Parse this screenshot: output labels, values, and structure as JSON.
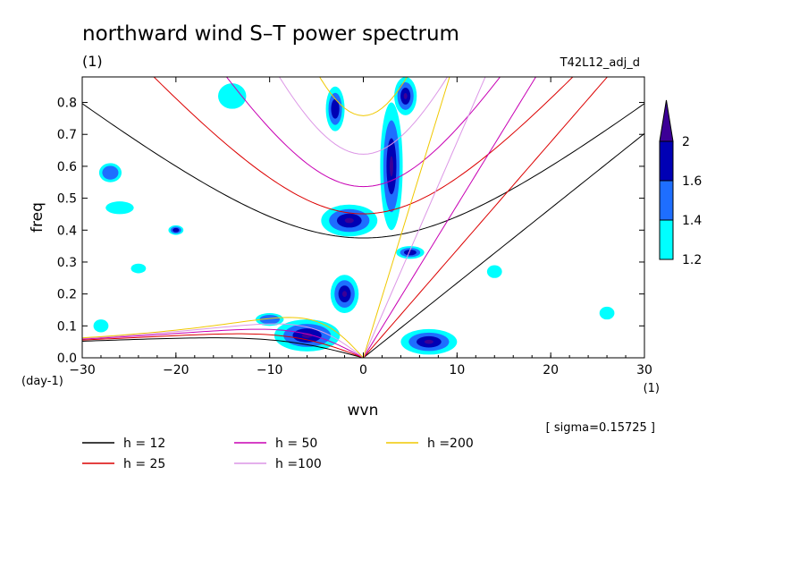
{
  "chart_data": {
    "type": "heatmap",
    "title": "northward wind S–T power spectrum",
    "subtitle_left": "(1)",
    "subtitle_right": "T42L12_adj_d",
    "xlabel": "wvn",
    "ylabel": "freq",
    "x_unit": "(1)",
    "y_unit": "(day-1)",
    "note": "[ sigma=0.15725 ]",
    "xlim": [
      -30,
      30
    ],
    "ylim": [
      0,
      0.88
    ],
    "x_ticks": [
      -30,
      -20,
      -10,
      0,
      10,
      20,
      30
    ],
    "x_tick_labels": [
      "−30",
      "−20",
      "−10",
      "0",
      "10",
      "20",
      "30"
    ],
    "y_ticks": [
      0,
      0.1,
      0.2,
      0.3,
      0.4,
      0.5,
      0.6,
      0.7,
      0.8
    ],
    "y_tick_labels": [
      "0.0",
      "0.1",
      "0.2",
      "0.3",
      "0.4",
      "0.5",
      "0.6",
      "0.7",
      "0.8"
    ],
    "colorbar": {
      "levels": [
        1.2,
        1.4,
        1.6,
        2
      ],
      "labels": [
        "1.2",
        "1.4",
        "1.6",
        "2"
      ],
      "colors": [
        "#00ffff",
        "#1e6eff",
        "#0000b4",
        "#3c0096"
      ]
    },
    "dispersion_curves": [
      {
        "name": "h = 12",
        "h": 12,
        "color": "#000000"
      },
      {
        "name": "h = 25",
        "h": 25,
        "color": "#dc0000"
      },
      {
        "name": "h = 50",
        "h": 50,
        "color": "#c800b4"
      },
      {
        "name": "h =100",
        "h": 100,
        "color": "#dc96e6"
      },
      {
        "name": "h =200",
        "h": 200,
        "color": "#f0c800"
      }
    ],
    "power_regions": [
      {
        "x": -6,
        "y": 0.07,
        "rx": 3.5,
        "ry": 0.05,
        "level": 2
      },
      {
        "x": -2,
        "y": 0.2,
        "rx": 1.5,
        "ry": 0.06,
        "level": 2
      },
      {
        "x": -1.5,
        "y": 0.43,
        "rx": 3,
        "ry": 0.05,
        "level": 2
      },
      {
        "x": 3,
        "y": 0.6,
        "rx": 1.2,
        "ry": 0.2,
        "level": 2
      },
      {
        "x": 4.5,
        "y": 0.82,
        "rx": 1.2,
        "ry": 0.06,
        "level": 2
      },
      {
        "x": 7,
        "y": 0.05,
        "rx": 3,
        "ry": 0.04,
        "level": 2
      },
      {
        "x": 5,
        "y": 0.33,
        "rx": 1.5,
        "ry": 0.02,
        "level": 1.6
      },
      {
        "x": -3,
        "y": 0.78,
        "rx": 1,
        "ry": 0.07,
        "level": 1.6
      },
      {
        "x": -10,
        "y": 0.12,
        "rx": 1.5,
        "ry": 0.02,
        "level": 1.4
      },
      {
        "x": -28,
        "y": 0.1,
        "rx": 0.8,
        "ry": 0.02,
        "level": 1.2
      },
      {
        "x": -26,
        "y": 0.47,
        "rx": 1.5,
        "ry": 0.02,
        "level": 1.2
      },
      {
        "x": -20,
        "y": 0.4,
        "rx": 0.8,
        "ry": 0.015,
        "level": 1.6
      },
      {
        "x": -27,
        "y": 0.58,
        "rx": 1.2,
        "ry": 0.03,
        "level": 1.4
      },
      {
        "x": -14,
        "y": 0.82,
        "rx": 1.5,
        "ry": 0.04,
        "level": 1.2
      },
      {
        "x": -24,
        "y": 0.28,
        "rx": 0.8,
        "ry": 0.015,
        "level": 1.2
      },
      {
        "x": 14,
        "y": 0.27,
        "rx": 0.8,
        "ry": 0.02,
        "level": 1.2
      },
      {
        "x": 26,
        "y": 0.14,
        "rx": 0.8,
        "ry": 0.02,
        "level": 1.2
      }
    ]
  }
}
